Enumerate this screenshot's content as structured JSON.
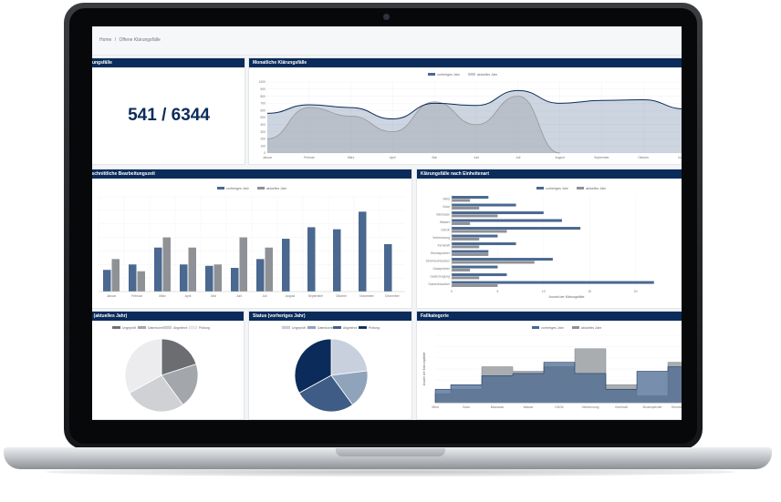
{
  "breadcrumb": {
    "home": "Home",
    "separator": "/",
    "current": "Offene Klärungsfälle"
  },
  "colors": {
    "navy": "#0b2c5a",
    "blue": "#4a6890",
    "grey": "#8e9196",
    "light": "#c7cdd6"
  },
  "panels": {
    "kpi": {
      "title": "Offene Klärungsfälle",
      "value": "541 / 6344"
    },
    "monthly": {
      "title": "Monatliche Klärungsfälle"
    },
    "processing": {
      "title": "Durchschnittliche Bearbeitungszeit"
    },
    "units": {
      "title": "Klärungsfälle nach Einheitenart"
    },
    "status_current": {
      "title": "Status (aktuelles Jahr)"
    },
    "status_previous": {
      "title": "Status (vorheriges Jahr)"
    },
    "category": {
      "title": "Fallkategorie"
    }
  },
  "chart_data": [
    {
      "id": "monthly",
      "type": "area",
      "title": "Monatliche Klärungsfälle",
      "categories": [
        "Januar",
        "Februar",
        "März",
        "April",
        "Mai",
        "Juni",
        "Juli",
        "August",
        "September",
        "Oktober",
        "November"
      ],
      "series": [
        {
          "name": "vorheriges Jahr",
          "values": [
            560,
            680,
            640,
            480,
            700,
            670,
            880,
            700,
            740,
            750,
            620
          ]
        },
        {
          "name": "aktuelles Jahr",
          "values": [
            200,
            640,
            520,
            300,
            720,
            400,
            800,
            0,
            null,
            null,
            null
          ]
        }
      ],
      "ylim": [
        0,
        1000
      ],
      "yticks": [
        0,
        100,
        200,
        300,
        400,
        500,
        600,
        700,
        800,
        900,
        1000
      ],
      "legend_position": "top",
      "grid": true
    },
    {
      "id": "processing",
      "type": "bar",
      "title": "Durchschnittliche Bearbeitungszeit",
      "categories": [
        "Januar",
        "Februar",
        "März",
        "April",
        "Mai",
        "Juni",
        "Juli",
        "August",
        "September",
        "Oktober",
        "November",
        "Dezember"
      ],
      "series": [
        {
          "name": "vorheriges Jahr",
          "values": [
            3.2,
            4.0,
            6.5,
            4.0,
            3.8,
            3.5,
            4.8,
            7.8,
            9.5,
            9.2,
            11.8,
            7.0
          ]
        },
        {
          "name": "aktuelles Jahr",
          "values": [
            4.8,
            3.0,
            8.0,
            6.5,
            4.0,
            8.0,
            6.5,
            null,
            null,
            null,
            null,
            null
          ]
        }
      ],
      "ylim": [
        0,
        14
      ],
      "legend_position": "top",
      "grid": true
    },
    {
      "id": "units",
      "type": "bar",
      "orientation": "horizontal",
      "title": "Klärungsfälle nach Einheitenart",
      "categories": [
        "Wind",
        "Solar",
        "Biomasse",
        "Wasser",
        "GDGK",
        "Verbrennung",
        "Kernkraft",
        "Stromspeicher",
        "Stromverbraucher",
        "Gasspeicher",
        "Gaserzeugung",
        "Gasverbraucher"
      ],
      "series": [
        {
          "name": "vorheriges Jahr",
          "values": [
            4,
            7,
            10,
            12,
            14,
            5,
            7,
            4,
            11,
            5,
            6,
            22
          ]
        },
        {
          "name": "aktuelles Jahr",
          "values": [
            2,
            3,
            5,
            2,
            6,
            3,
            3,
            4,
            9,
            2,
            3,
            5
          ]
        }
      ],
      "xlim": [
        0,
        25
      ],
      "xticks": [
        0,
        5,
        10,
        15,
        20
      ],
      "xlabel": "Anzahl der Klärungsfälle",
      "legend_position": "top",
      "grid": true
    },
    {
      "id": "status_current",
      "type": "pie",
      "title": "Status (aktuelles Jahr)",
      "labels": [
        "Ungeprüft",
        "Datenkorrektur",
        "Abgelehnt",
        "Prüfung"
      ],
      "values": [
        20,
        20,
        27,
        33
      ],
      "colors": [
        "#6b6d71",
        "#a3a6aa",
        "#cfd1d4",
        "#ececee"
      ]
    },
    {
      "id": "status_previous",
      "type": "pie",
      "title": "Status (vorheriges Jahr)",
      "labels": [
        "Ungeprüft",
        "Datenkorrektur",
        "Abgelehnt",
        "Prüfung"
      ],
      "values": [
        23,
        17,
        27,
        33
      ],
      "colors": [
        "#c7d0dc",
        "#8fa3bb",
        "#3e5c85",
        "#0b2c5a"
      ]
    },
    {
      "id": "category",
      "type": "area",
      "title": "Fallkategorie",
      "categories": [
        "Wind",
        "Solar",
        "Biomasse",
        "Wasser",
        "GDGK",
        "Verbrennung",
        "Kernkraft",
        "Stromspeicher",
        "Stromverbraucher"
      ],
      "series": [
        {
          "name": "vorheriges Jahr",
          "values": [
            60,
            80,
            120,
            130,
            180,
            130,
            60,
            140,
            160
          ]
        },
        {
          "name": "aktuelles Jahr",
          "values": [
            40,
            60,
            160,
            140,
            160,
            240,
            80,
            30,
            180
          ]
        }
      ],
      "ylim": [
        0,
        300
      ],
      "ylabel": "Anzahl der Klärungsfälle",
      "legend_position": "top",
      "grid": true
    }
  ]
}
